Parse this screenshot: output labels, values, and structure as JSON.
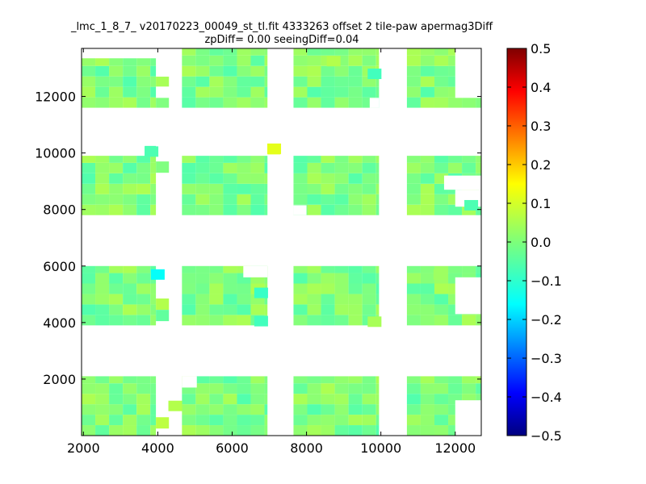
{
  "chart_data": {
    "type": "heatmap",
    "title": "_lmc_1_8_7_ v20170223_00049_st_tl.fit 4333263 offset 2 tile-paw apermag3Diff",
    "subtitle": "zpDiff= 0.00 seeingDiff=0.04",
    "xlabel": "",
    "ylabel": "",
    "xlim": [
      1950,
      12700
    ],
    "ylim": [
      0,
      13700
    ],
    "x_ticks": [
      2000,
      4000,
      6000,
      8000,
      10000,
      12000
    ],
    "y_ticks": [
      2000,
      4000,
      6000,
      8000,
      10000,
      12000
    ],
    "colorbar": {
      "colormap": "jet",
      "range": [
        -0.5,
        0.5
      ],
      "ticks": [
        "0.5",
        "0.4",
        "0.3",
        "0.2",
        "0.1",
        "0.0",
        "−0.1",
        "−0.2",
        "−0.3",
        "−0.4",
        "−0.5"
      ]
    },
    "cell_size": [
      370,
      370
    ],
    "base_value": 0.0,
    "detector_blocks": [
      {
        "x": [
          1950,
          3950
        ],
        "y": [
          0,
          2100
        ]
      },
      {
        "x": [
          4650,
          6950
        ],
        "y": [
          0,
          2100
        ]
      },
      {
        "x": [
          7650,
          9950
        ],
        "y": [
          0,
          2100
        ]
      },
      {
        "x": [
          10700,
          12700
        ],
        "y": [
          0,
          2100
        ]
      },
      {
        "x": [
          1950,
          3950
        ],
        "y": [
          3900,
          6000
        ]
      },
      {
        "x": [
          4650,
          6950
        ],
        "y": [
          3900,
          6000
        ]
      },
      {
        "x": [
          7650,
          9950
        ],
        "y": [
          3900,
          6000
        ]
      },
      {
        "x": [
          10700,
          12700
        ],
        "y": [
          3900,
          6000
        ]
      },
      {
        "x": [
          1950,
          3950
        ],
        "y": [
          7800,
          9900
        ]
      },
      {
        "x": [
          4650,
          6950
        ],
        "y": [
          7800,
          9900
        ]
      },
      {
        "x": [
          7650,
          9950
        ],
        "y": [
          7800,
          9900
        ]
      },
      {
        "x": [
          10700,
          12700
        ],
        "y": [
          7800,
          9900
        ]
      },
      {
        "x": [
          1950,
          3950
        ],
        "y": [
          11600,
          13700
        ]
      },
      {
        "x": [
          4650,
          6950
        ],
        "y": [
          11600,
          13700
        ]
      },
      {
        "x": [
          7650,
          9950
        ],
        "y": [
          11600,
          13700
        ]
      },
      {
        "x": [
          10700,
          12700
        ],
        "y": [
          11600,
          13700
        ]
      }
    ],
    "extra_patches": [
      {
        "x": [
          3950,
          4300
        ],
        "y": [
          250,
          650
        ],
        "value": 0.06
      },
      {
        "x": [
          3950,
          4300
        ],
        "y": [
          9300,
          9700
        ],
        "value": 0.0
      },
      {
        "x": [
          3950,
          4300
        ],
        "y": [
          4450,
          4850
        ],
        "value": 0.05
      },
      {
        "x": [
          3950,
          4300
        ],
        "y": [
          4050,
          4450
        ],
        "value": -0.03
      },
      {
        "x": [
          3950,
          4300
        ],
        "y": [
          12350,
          12700
        ],
        "value": 0.04
      },
      {
        "x": [
          3950,
          4300
        ],
        "y": [
          11600,
          11950
        ],
        "value": 0.0
      },
      {
        "x": [
          6950,
          7300
        ],
        "y": [
          9950,
          10300
        ],
        "value": 0.1
      },
      {
        "x": [
          12700,
          12700
        ],
        "y": [
          0,
          0
        ],
        "value": 0.0
      }
    ],
    "missing_patches": [
      {
        "x": [
          1950,
          4300
        ],
        "y": [
          13350,
          13700
        ],
        "block_hint": "none"
      },
      {
        "x": [
          3650,
          3950
        ],
        "y": [
          9900,
          10250
        ],
        "value_fill": -0.05
      },
      {
        "x": [
          4650,
          5050
        ],
        "y": [
          1700,
          2100
        ]
      },
      {
        "x": [
          12000,
          12700
        ],
        "y": [
          0,
          1250
        ]
      },
      {
        "x": [
          11700,
          12700
        ],
        "y": [
          8700,
          9200
        ]
      },
      {
        "x": [
          12000,
          12700
        ],
        "y": [
          8100,
          8700
        ]
      },
      {
        "x": [
          12000,
          12700
        ],
        "y": [
          4300,
          5600
        ]
      },
      {
        "x": [
          12000,
          12700
        ],
        "y": [
          11950,
          13700
        ]
      },
      {
        "x": [
          7650,
          8000
        ],
        "y": [
          7800,
          8150
        ]
      },
      {
        "x": [
          9700,
          9950
        ],
        "y": [
          11600,
          11950
        ]
      },
      {
        "x": [
          6300,
          6950
        ],
        "y": [
          5600,
          6000
        ]
      }
    ],
    "notable_cells": [
      {
        "x": 4000,
        "y": 5700,
        "value": -0.12
      },
      {
        "x": 3830,
        "y": 10050,
        "value": -0.05
      },
      {
        "x": 7130,
        "y": 10150,
        "value": 0.1
      },
      {
        "x": 6780,
        "y": 5050,
        "value": -0.07
      },
      {
        "x": 6780,
        "y": 4050,
        "value": -0.06
      },
      {
        "x": 9830,
        "y": 12800,
        "value": -0.06
      },
      {
        "x": 12430,
        "y": 8150,
        "value": -0.05
      },
      {
        "x": 11600,
        "y": 5700,
        "value": 0.03
      },
      {
        "x": 8730,
        "y": 13250,
        "value": 0.05
      },
      {
        "x": 9830,
        "y": 4030,
        "value": 0.04
      },
      {
        "x": 4470,
        "y": 1050,
        "value": 0.05
      }
    ]
  }
}
